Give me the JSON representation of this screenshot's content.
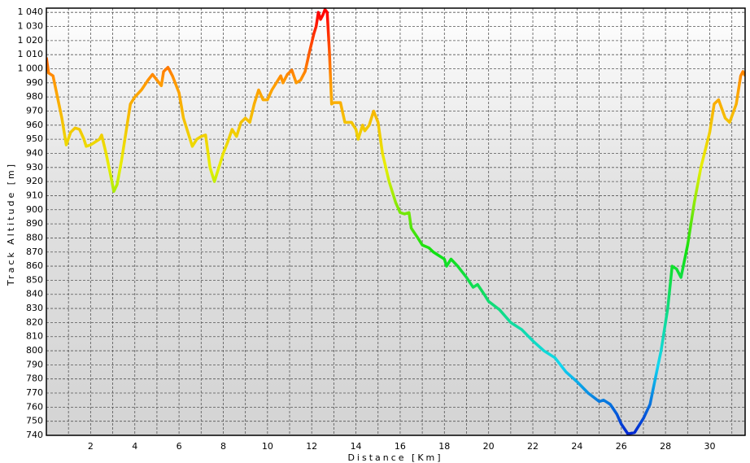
{
  "chart_data": {
    "type": "line",
    "x_label": "Distance [Km]",
    "y_label": "Track Altitude [m]",
    "xlim": [
      0,
      31.6
    ],
    "ylim": [
      740,
      1043
    ],
    "xticks": [
      2,
      4,
      6,
      8,
      10,
      12,
      14,
      16,
      18,
      20,
      22,
      24,
      26,
      28,
      30
    ],
    "minor_xticks": [
      1,
      3,
      5,
      7,
      9,
      11,
      13,
      15,
      17,
      19,
      21,
      23,
      25,
      27,
      29,
      31
    ],
    "yticks": [
      740,
      750,
      760,
      770,
      780,
      790,
      800,
      810,
      820,
      830,
      840,
      850,
      860,
      870,
      880,
      890,
      900,
      910,
      920,
      930,
      940,
      950,
      960,
      970,
      980,
      990,
      {
        "value": 1000,
        "label": "1 000"
      },
      {
        "value": 1010,
        "label": "1 010"
      },
      {
        "value": 1020,
        "label": "1 020"
      },
      {
        "value": 1030,
        "label": "1 030"
      },
      {
        "value": 1040,
        "label": "1 040"
      }
    ],
    "grid": true,
    "color_stops": [
      {
        "value": 740,
        "color": "#0022d0"
      },
      {
        "value": 790,
        "color": "#10d8f0"
      },
      {
        "value": 870,
        "color": "#10e010"
      },
      {
        "value": 930,
        "color": "#e8f000"
      },
      {
        "value": 990,
        "color": "#ff9a00"
      },
      {
        "value": 1040,
        "color": "#ff0000"
      }
    ],
    "x": [
      0,
      0.1,
      0.3,
      0.5,
      0.7,
      0.9,
      1.1,
      1.3,
      1.5,
      1.7,
      1.8,
      2.0,
      2.2,
      2.4,
      2.5,
      2.7,
      2.9,
      3.05,
      3.2,
      3.4,
      3.6,
      3.8,
      4.0,
      4.3,
      4.6,
      4.8,
      5.0,
      5.2,
      5.3,
      5.5,
      5.7,
      6.0,
      6.2,
      6.4,
      6.6,
      6.8,
      7.0,
      7.2,
      7.4,
      7.6,
      7.8,
      8.0,
      8.2,
      8.4,
      8.6,
      8.8,
      9.0,
      9.2,
      9.4,
      9.6,
      9.8,
      10.0,
      10.2,
      10.4,
      10.6,
      10.7,
      10.9,
      11.1,
      11.3,
      11.5,
      11.7,
      11.9,
      12.1,
      12.2,
      12.3,
      12.4,
      12.5,
      12.6,
      12.7,
      12.8,
      12.9,
      13.0,
      13.3,
      13.5,
      13.8,
      14.0,
      14.1,
      14.3,
      14.4,
      14.6,
      14.8,
      15.0,
      15.2,
      15.5,
      15.8,
      16.0,
      16.2,
      16.4,
      16.5,
      16.8,
      17.0,
      17.3,
      17.5,
      17.7,
      18.0,
      18.1,
      18.3,
      18.6,
      19.0,
      19.3,
      19.5,
      19.8,
      20.0,
      20.5,
      21.0,
      21.5,
      22.0,
      22.5,
      23.0,
      23.5,
      24.0,
      24.5,
      25.0,
      25.2,
      25.5,
      25.8,
      26.0,
      26.3,
      26.6,
      27.0,
      27.3,
      27.6,
      27.8,
      28.1,
      28.3,
      28.5,
      28.7,
      29.0,
      29.3,
      29.6,
      30.0,
      30.2,
      30.4,
      30.7,
      30.9,
      31.2,
      31.4,
      31.5,
      31.6
    ],
    "values": [
      1008,
      997,
      995,
      980,
      965,
      946,
      955,
      958,
      957,
      950,
      945,
      946,
      948,
      950,
      953,
      940,
      925,
      913,
      918,
      935,
      955,
      975,
      980,
      985,
      992,
      996,
      992,
      988,
      998,
      1001,
      995,
      983,
      965,
      955,
      945,
      950,
      952,
      953,
      930,
      920,
      930,
      940,
      948,
      957,
      952,
      962,
      965,
      962,
      975,
      985,
      978,
      978,
      985,
      990,
      995,
      990,
      996,
      999,
      990,
      992,
      998,
      1012,
      1025,
      1030,
      1040,
      1035,
      1038,
      1042,
      1040,
      1012,
      975,
      976,
      976,
      962,
      962,
      957,
      950,
      960,
      956,
      960,
      970,
      962,
      940,
      920,
      905,
      898,
      897,
      898,
      887,
      880,
      875,
      873,
      870,
      868,
      865,
      860,
      865,
      860,
      852,
      845,
      847,
      840,
      835,
      829,
      820,
      815,
      807,
      800,
      795,
      785,
      778,
      770,
      764,
      765,
      762,
      755,
      748,
      741,
      742,
      752,
      762,
      785,
      800,
      830,
      860,
      858,
      852,
      875,
      905,
      930,
      955,
      975,
      978,
      965,
      962,
      975,
      995,
      998,
      995
    ]
  }
}
